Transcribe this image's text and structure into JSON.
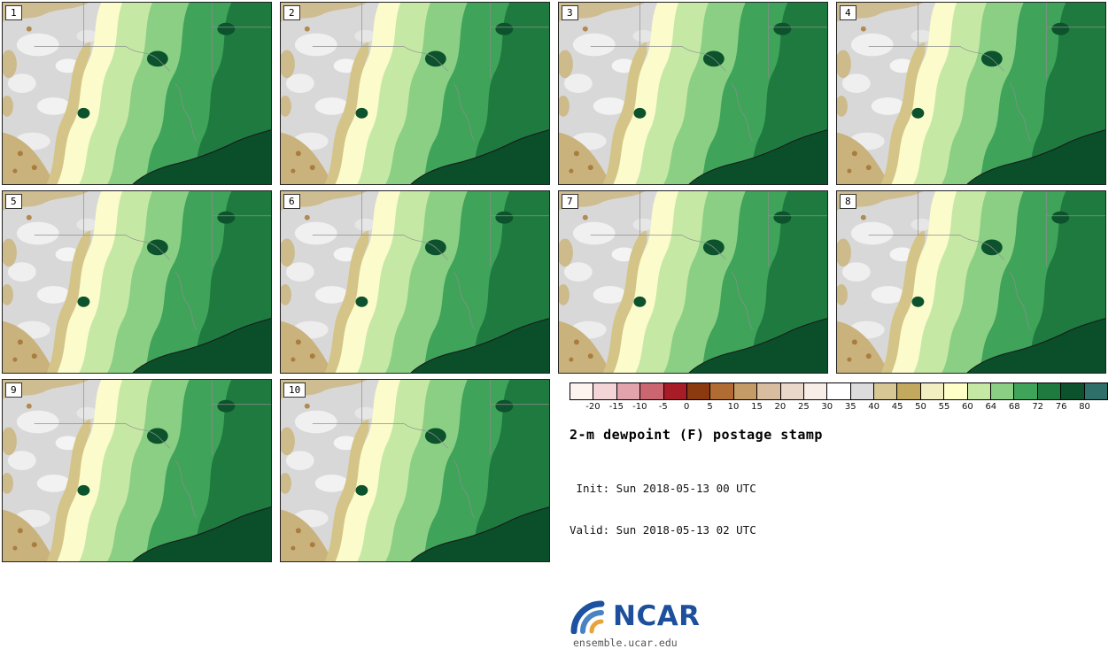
{
  "figure": {
    "title": "2-m dewpoint (F) postage stamp",
    "init_line": " Init: Sun 2018-05-13 00 UTC",
    "valid_line": "Valid: Sun 2018-05-13 02 UTC",
    "logo_text": "NCAR",
    "credit_url": "ensemble.ucar.edu"
  },
  "panels": [
    {
      "label": "1"
    },
    {
      "label": "2"
    },
    {
      "label": "3"
    },
    {
      "label": "4"
    },
    {
      "label": "5"
    },
    {
      "label": "6"
    },
    {
      "label": "7"
    },
    {
      "label": "8"
    },
    {
      "label": "9"
    },
    {
      "label": "10"
    }
  ],
  "colorbar": {
    "ticks": [
      "-20",
      "-15",
      "-10",
      "-5",
      "0",
      "5",
      "10",
      "15",
      "20",
      "25",
      "30",
      "35",
      "40",
      "45",
      "50",
      "55",
      "60",
      "64",
      "68",
      "72",
      "76",
      "80"
    ],
    "colors": [
      "#fdf4f0",
      "#f3d5d8",
      "#e2a3ac",
      "#cb6670",
      "#a81c28",
      "#8b3a0f",
      "#b06c33",
      "#c49a66",
      "#d8bda1",
      "#ead9cb",
      "#f7efe7",
      "#ffffff",
      "#dcdcdc",
      "#d6c795",
      "#c2a95e",
      "#f2eec2",
      "#ffffc8",
      "#c6e8a5",
      "#8bcf85",
      "#3fa35a",
      "#1e7a3e",
      "#0c522c",
      "#2e6f6a"
    ]
  },
  "chart_data": {
    "type": "heatmap",
    "title": "2-m dewpoint (F) postage stamp",
    "panels": 10,
    "variable": "2-m dewpoint (F)",
    "init": "Sun 2018-05-13 00 UTC",
    "valid": "Sun 2018-05-13 02 UTC",
    "colorbar_levels": [
      -20,
      -15,
      -10,
      -5,
      0,
      5,
      10,
      15,
      20,
      25,
      30,
      35,
      40,
      45,
      50,
      55,
      60,
      64,
      68,
      72,
      76,
      80
    ],
    "legend_position": "bottom-right"
  },
  "colors": {
    "logo_blue": "#1d4f9c",
    "credit_gray": "#555555"
  }
}
